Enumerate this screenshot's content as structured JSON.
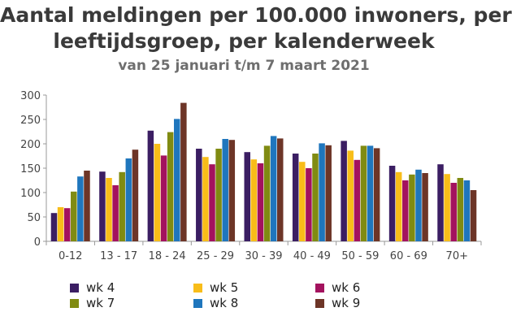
{
  "title_line1": "Aantal meldingen per 100.000 inwoners, per",
  "title_line2": "leeftijdsgroep, per kalenderweek",
  "subtitle": "van 25 januari t/m 7 maart 2021",
  "chart_data": {
    "type": "bar",
    "title": "Aantal meldingen per 100.000 inwoners, per leeftijdsgroep, per kalenderweek",
    "subtitle": "van 25 januari t/m 7 maart 2021",
    "categories": [
      "0-12",
      "13 - 17",
      "18 - 24",
      "25 - 29",
      "30 - 39",
      "40 - 49",
      "50 - 59",
      "60 - 69",
      "70+"
    ],
    "series": [
      {
        "name": "wk 4",
        "color": "#3b1e63",
        "values": [
          58,
          143,
          227,
          190,
          183,
          180,
          206,
          155,
          158
        ]
      },
      {
        "name": "wk 5",
        "color": "#f8bd19",
        "values": [
          70,
          130,
          200,
          173,
          168,
          163,
          186,
          142,
          138
        ]
      },
      {
        "name": "wk 6",
        "color": "#a3125e",
        "values": [
          68,
          115,
          176,
          158,
          160,
          150,
          167,
          125,
          120
        ]
      },
      {
        "name": "wk 7",
        "color": "#808b12",
        "values": [
          102,
          142,
          224,
          190,
          196,
          180,
          196,
          137,
          130
        ]
      },
      {
        "name": "wk 8",
        "color": "#1f76bd",
        "values": [
          133,
          170,
          251,
          210,
          216,
          201,
          196,
          147,
          125
        ]
      },
      {
        "name": "wk 9",
        "color": "#6d3527",
        "values": [
          145,
          188,
          284,
          208,
          211,
          197,
          191,
          140,
          105
        ]
      }
    ],
    "ylim": [
      0,
      300
    ],
    "yticks": [
      0,
      50,
      100,
      150,
      200,
      250,
      300
    ],
    "xlabel": "",
    "ylabel": "",
    "grid": false,
    "legend_position": "bottom"
  }
}
